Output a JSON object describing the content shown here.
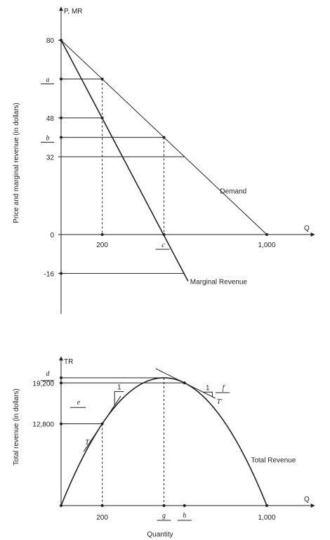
{
  "chart_data": [
    {
      "type": "line",
      "ylabel": "Price and marginal revenue (in dollars)",
      "y_axis_title": "P, MR",
      "x_axis_title": "Q",
      "x_ticks": [
        {
          "label": "200",
          "value": 200
        },
        {
          "label": "1,000",
          "value": 1000
        }
      ],
      "y_ticks": [
        {
          "label": "80",
          "value": 80
        },
        {
          "label": "48",
          "value": 48
        },
        {
          "label": "32",
          "value": 32
        },
        {
          "label": "0",
          "value": 0
        },
        {
          "label": "-16",
          "value": -16
        }
      ],
      "placeholders": [
        {
          "label": "a",
          "axis": "y",
          "value": 64
        },
        {
          "label": "b",
          "axis": "y",
          "value": 40
        },
        {
          "label": "c",
          "axis": "x",
          "value": 500
        }
      ],
      "series": [
        {
          "name": "Demand",
          "x": [
            0,
            1000
          ],
          "y": [
            80,
            0
          ]
        },
        {
          "name": "Marginal Revenue",
          "x": [
            0,
            600
          ],
          "y": [
            80,
            -16
          ]
        }
      ],
      "guides": [
        {
          "y": 64,
          "x_to": 200
        },
        {
          "y": 48,
          "x_to": 200
        },
        {
          "y": 40,
          "x_to": 500
        },
        {
          "y": 32,
          "x_to": 600
        },
        {
          "y": -16,
          "x_to": 600
        }
      ],
      "xlim": [
        0,
        1080
      ],
      "ylim": [
        -22,
        104
      ]
    },
    {
      "type": "line",
      "ylabel": "Total revenue (in dollars)",
      "xlabel": "Quantity",
      "y_axis_title": "TR",
      "x_axis_title": "Q",
      "x_ticks": [
        {
          "label": "200",
          "value": 200
        },
        {
          "label": "1,000",
          "value": 1000
        }
      ],
      "y_ticks": [
        {
          "label": "19,200",
          "value": 19200
        },
        {
          "label": "12,800",
          "value": 12800
        }
      ],
      "placeholders": [
        {
          "label": "d",
          "axis": "y",
          "value": 20000
        },
        {
          "label": "g",
          "axis": "x",
          "value": 500
        },
        {
          "label": "h",
          "axis": "x",
          "value": 600
        },
        {
          "label": "e",
          "note": "slope triangle"
        },
        {
          "label": "f",
          "note": "slope triangle"
        },
        {
          "label": "T",
          "note": "tangent"
        },
        {
          "label": "T'",
          "note": "tangent"
        }
      ],
      "series": [
        {
          "name": "Total Revenue",
          "function": "TR = 80Q - 0.08Q^2",
          "x": [
            0,
            1000
          ]
        }
      ],
      "tangents": [
        {
          "label": "T",
          "at_x": 200,
          "slope": 48,
          "slope_triangle_run": "1"
        },
        {
          "label": "T'",
          "at_x": 600,
          "slope": -16,
          "slope_triangle_run": "1"
        }
      ],
      "xlim": [
        0,
        1080
      ],
      "ylim": [
        0,
        22200
      ]
    }
  ]
}
